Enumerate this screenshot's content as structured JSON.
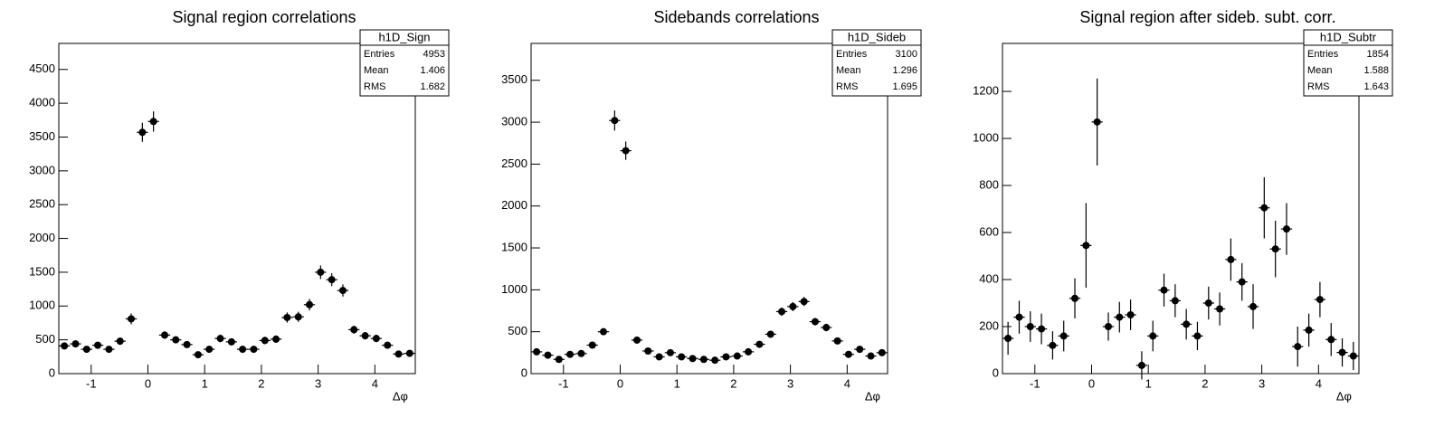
{
  "chart_data": [
    {
      "type": "errorbar",
      "title": "Signal region correlations",
      "x_label": "Δφ",
      "x": [
        -1.473,
        -1.276,
        -1.08,
        -0.884,
        -0.687,
        -0.491,
        -0.295,
        -0.098,
        0.098,
        0.295,
        0.491,
        0.687,
        0.884,
        1.08,
        1.276,
        1.473,
        1.669,
        1.865,
        2.062,
        2.258,
        2.454,
        2.651,
        2.847,
        3.043,
        3.24,
        3.436,
        3.632,
        3.829,
        4.025,
        4.222,
        4.418,
        4.614
      ],
      "xerr": 0.098,
      "values": [
        410,
        440,
        360,
        420,
        360,
        480,
        810,
        3570,
        3730,
        570,
        500,
        430,
        280,
        360,
        520,
        470,
        360,
        360,
        490,
        510,
        830,
        840,
        1020,
        1500,
        1390,
        1230,
        650,
        560,
        520,
        420,
        290,
        300
      ],
      "errors": [
        50,
        50,
        45,
        50,
        45,
        55,
        80,
        140,
        150,
        55,
        50,
        50,
        40,
        45,
        55,
        50,
        45,
        45,
        55,
        55,
        75,
        75,
        85,
        100,
        95,
        90,
        60,
        55,
        55,
        50,
        40,
        40
      ],
      "color": "#000000",
      "xlim": [
        -1.5708,
        4.7124
      ],
      "xticks": [
        -1,
        0,
        1,
        2,
        3,
        4
      ],
      "ylim": [
        0,
        4885
      ],
      "yticks": [
        0,
        500,
        1000,
        1500,
        2000,
        2500,
        3000,
        3500,
        4000,
        4500
      ],
      "stats": {
        "title": "h1D_Sign",
        "rows": [
          [
            "Entries",
            "4953"
          ],
          [
            "Mean",
            "1.406"
          ],
          [
            "RMS",
            "1.682"
          ]
        ]
      }
    },
    {
      "type": "errorbar",
      "title": "Sidebands correlations",
      "x_label": "Δφ",
      "x": [
        -1.473,
        -1.276,
        -1.08,
        -0.884,
        -0.687,
        -0.491,
        -0.295,
        -0.098,
        0.098,
        0.295,
        0.491,
        0.687,
        0.884,
        1.08,
        1.276,
        1.473,
        1.669,
        1.865,
        2.062,
        2.258,
        2.454,
        2.651,
        2.847,
        3.043,
        3.24,
        3.436,
        3.632,
        3.829,
        4.025,
        4.222,
        4.418,
        4.614
      ],
      "xerr": 0.098,
      "values": [
        260,
        220,
        170,
        230,
        240,
        340,
        500,
        3020,
        2660,
        400,
        270,
        200,
        250,
        200,
        180,
        170,
        160,
        200,
        210,
        260,
        350,
        470,
        740,
        800,
        860,
        620,
        550,
        390,
        230,
        290,
        210,
        250
      ],
      "errors": [
        30,
        30,
        25,
        30,
        30,
        35,
        40,
        120,
        110,
        35,
        30,
        25,
        30,
        25,
        25,
        25,
        25,
        25,
        25,
        30,
        35,
        40,
        50,
        55,
        55,
        45,
        45,
        35,
        30,
        30,
        25,
        30
      ],
      "color": "#000000",
      "xlim": [
        -1.5708,
        4.7124
      ],
      "xticks": [
        -1,
        0,
        1,
        2,
        3,
        4
      ],
      "ylim": [
        0,
        3940
      ],
      "yticks": [
        0,
        500,
        1000,
        1500,
        2000,
        2500,
        3000,
        3500
      ],
      "stats": {
        "title": "h1D_Sideb",
        "rows": [
          [
            "Entries",
            "3100"
          ],
          [
            "Mean",
            "1.296"
          ],
          [
            "RMS",
            "1.695"
          ]
        ]
      }
    },
    {
      "type": "errorbar",
      "title": "Signal region after sideb. subt. corr.",
      "x_label": "Δφ",
      "x": [
        -1.473,
        -1.276,
        -1.08,
        -0.884,
        -0.687,
        -0.491,
        -0.295,
        -0.098,
        0.098,
        0.295,
        0.491,
        0.687,
        0.884,
        1.08,
        1.276,
        1.473,
        1.669,
        1.865,
        2.062,
        2.258,
        2.454,
        2.651,
        2.847,
        3.043,
        3.24,
        3.436,
        3.632,
        3.829,
        4.025,
        4.222,
        4.418,
        4.614
      ],
      "xerr": 0.098,
      "values": [
        150,
        240,
        200,
        190,
        120,
        160,
        320,
        545,
        1070,
        200,
        240,
        250,
        35,
        160,
        355,
        310,
        210,
        160,
        300,
        275,
        485,
        390,
        285,
        705,
        530,
        615,
        115,
        185,
        315,
        145,
        90,
        75
      ],
      "errors": [
        70,
        70,
        65,
        65,
        60,
        65,
        85,
        180,
        185,
        60,
        65,
        65,
        60,
        65,
        70,
        70,
        65,
        60,
        70,
        70,
        90,
        80,
        95,
        130,
        120,
        110,
        85,
        70,
        75,
        70,
        60,
        60
      ],
      "color": "#000000",
      "xlim": [
        -1.5708,
        4.7124
      ],
      "xticks": [
        -1,
        0,
        1,
        2,
        3,
        4
      ],
      "ylim": [
        0,
        1404
      ],
      "yticks": [
        0,
        200,
        400,
        600,
        800,
        1000,
        1200
      ],
      "stats": {
        "title": "h1D_Subtr",
        "rows": [
          [
            "Entries",
            "1854"
          ],
          [
            "Mean",
            "1.588"
          ],
          [
            "RMS",
            "1.643"
          ]
        ]
      }
    }
  ]
}
